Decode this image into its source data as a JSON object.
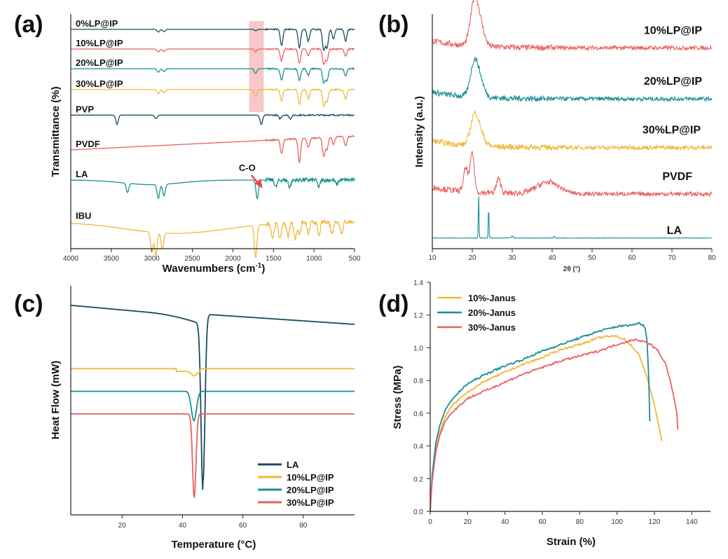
{
  "colors": {
    "navy": "#1b4b5c",
    "red": "#e86262",
    "teal": "#1a8f94",
    "yellow": "#f2b73c",
    "highlight": "#f6b9b9"
  },
  "chart_data": [
    {
      "panel_label": "(a)",
      "type": "line",
      "xlabel": "Wavenumbers (cm",
      "xlabel_sup": "-1",
      "xlabel_close": ")",
      "ylabel": "Transmittance (%)",
      "xlim": [
        4000,
        500
      ],
      "x_ticks": [
        "4000",
        "3500",
        "3000",
        "2500",
        "2000",
        "1500",
        "1000",
        "500"
      ],
      "highlight_band": [
        1800,
        1620
      ],
      "annotation": {
        "text": "C-O",
        "x": 1720
      },
      "series": [
        {
          "name": "0%LP@IP",
          "color": "navy",
          "offset": 0.94,
          "peaks": [
            [
              2920,
              0.012
            ],
            [
              2850,
              0.01
            ],
            [
              1720,
              0.006
            ],
            [
              1400,
              0.07
            ],
            [
              1180,
              0.08
            ],
            [
              1070,
              0.05
            ],
            [
              880,
              0.09
            ],
            [
              840,
              0.08
            ],
            [
              760,
              0.04
            ],
            [
              610,
              0.05
            ]
          ]
        },
        {
          "name": "10%LP@IP",
          "color": "red",
          "offset": 0.855,
          "peaks": [
            [
              2920,
              0.012
            ],
            [
              2850,
              0.01
            ],
            [
              1720,
              0.012
            ],
            [
              1400,
              0.05
            ],
            [
              1180,
              0.06
            ],
            [
              1070,
              0.03
            ],
            [
              880,
              0.065
            ],
            [
              840,
              0.05
            ],
            [
              610,
              0.03
            ]
          ]
        },
        {
          "name": "20%LP@IP",
          "color": "teal",
          "offset": 0.77,
          "peaks": [
            [
              2920,
              0.015
            ],
            [
              2850,
              0.012
            ],
            [
              1720,
              0.02
            ],
            [
              1400,
              0.05
            ],
            [
              1180,
              0.05
            ],
            [
              1070,
              0.03
            ],
            [
              880,
              0.06
            ],
            [
              840,
              0.05
            ],
            [
              610,
              0.03
            ]
          ]
        },
        {
          "name": "30%LP@IP",
          "color": "yellow",
          "offset": 0.68,
          "peaks": [
            [
              2920,
              0.018
            ],
            [
              2850,
              0.014
            ],
            [
              1720,
              0.03
            ],
            [
              1400,
              0.05
            ],
            [
              1180,
              0.06
            ],
            [
              1070,
              0.04
            ],
            [
              880,
              0.07
            ],
            [
              840,
              0.05
            ],
            [
              610,
              0.04
            ]
          ]
        },
        {
          "name": "PVP",
          "color": "navy",
          "offset": 0.57,
          "peaks": [
            [
              3430,
              0.04
            ],
            [
              2950,
              0.015
            ],
            [
              1650,
              0.04
            ],
            [
              1420,
              0.015
            ],
            [
              1290,
              0.015
            ]
          ]
        },
        {
          "name": "PVDF",
          "color": "red",
          "offset": 0.42,
          "peaks": [
            [
              1400,
              0.06
            ],
            [
              1180,
              0.1
            ],
            [
              1070,
              0.04
            ],
            [
              880,
              0.08
            ],
            [
              840,
              0.05
            ],
            [
              760,
              0.03
            ],
            [
              610,
              0.04
            ]
          ]
        },
        {
          "name": "LA",
          "color": "teal",
          "offset": 0.29,
          "peaks": [
            [
              3300,
              0.04
            ],
            [
              2920,
              0.06
            ],
            [
              2850,
              0.05
            ],
            [
              1700,
              0.08
            ],
            [
              1470,
              0.03
            ],
            [
              1300,
              0.03
            ],
            [
              940,
              0.03
            ],
            [
              720,
              0.02
            ]
          ]
        },
        {
          "name": "IBU",
          "color": "yellow",
          "offset": 0.11,
          "peaks": [
            [
              3000,
              0.08
            ],
            [
              2950,
              0.1
            ],
            [
              2870,
              0.07
            ],
            [
              1720,
              0.14
            ],
            [
              1510,
              0.06
            ],
            [
              1420,
              0.07
            ],
            [
              1320,
              0.06
            ],
            [
              1230,
              0.07
            ],
            [
              1180,
              0.05
            ],
            [
              1070,
              0.05
            ],
            [
              940,
              0.06
            ],
            [
              780,
              0.05
            ],
            [
              660,
              0.05
            ]
          ]
        }
      ]
    },
    {
      "panel_label": "(b)",
      "type": "line",
      "xlabel": "2θ (°)",
      "ylabel": "Intensity (a.u.)",
      "xlim": [
        10,
        80
      ],
      "x_ticks": [
        "10",
        "20",
        "30",
        "40",
        "50",
        "60",
        "70",
        "80"
      ],
      "series": [
        {
          "name": "10%LP@IP",
          "color": "red",
          "offset": 0.86,
          "peaks": [
            [
              20.5,
              0.18,
              1.4
            ],
            [
              22,
              0.08,
              1.5
            ]
          ]
        },
        {
          "name": "20%LP@IP",
          "color": "teal",
          "offset": 0.64,
          "peaks": [
            [
              20.5,
              0.14,
              1.4
            ],
            [
              22,
              0.06,
              1.5
            ]
          ]
        },
        {
          "name": "30%LP@IP",
          "color": "yellow",
          "offset": 0.43,
          "peaks": [
            [
              20.5,
              0.12,
              1.4
            ],
            [
              22,
              0.05,
              1.5
            ]
          ]
        },
        {
          "name": "PVDF",
          "color": "red",
          "offset": 0.23,
          "peaks": [
            [
              18.4,
              0.1,
              0.8
            ],
            [
              20,
              0.17,
              0.7
            ],
            [
              26.6,
              0.06,
              0.8
            ],
            [
              39,
              0.05,
              4
            ]
          ]
        },
        {
          "name": "LA",
          "color": "teal",
          "offset": 0.04,
          "peaks": [
            [
              21.6,
              0.2,
              0.12
            ],
            [
              24.1,
              0.14,
              0.12
            ],
            [
              30,
              0.01,
              0.2
            ],
            [
              40.5,
              0.008,
              0.2
            ]
          ]
        }
      ]
    },
    {
      "panel_label": "(c)",
      "type": "line",
      "xlabel": "Temperature (°C)",
      "ylabel": "Heat Flow (mW)",
      "xlim": [
        3,
        97
      ],
      "x_ticks": [
        20,
        40,
        60,
        80
      ],
      "series": [
        {
          "name": "LA",
          "color": "navy",
          "base": 0.92,
          "slope": -0.0012,
          "peak_x": 46.8,
          "depth": 0.74,
          "width": 0.9
        },
        {
          "name": "10%LP@IP",
          "color": "yellow",
          "base": 0.64,
          "slope": 0,
          "peak_x": 43.8,
          "depth": 0.02,
          "width": 1.2
        },
        {
          "name": "20%LP@IP",
          "color": "teal",
          "base": 0.54,
          "slope": 0,
          "peak_x": 43.8,
          "depth": 0.13,
          "width": 1.2
        },
        {
          "name": "30%LP@IP",
          "color": "red",
          "base": 0.44,
          "slope": 0,
          "peak_x": 43.9,
          "depth": 0.37,
          "width": 0.8
        }
      ],
      "legend": [
        "LA",
        "10%LP@IP",
        "20%LP@IP",
        "30%LP@IP"
      ]
    },
    {
      "panel_label": "(d)",
      "type": "line",
      "xlabel": "Strain (%)",
      "ylabel": "Stress (MPa)",
      "xlim": [
        0,
        150
      ],
      "ylim": [
        0,
        1.4
      ],
      "x_ticks": [
        0,
        20,
        40,
        60,
        80,
        100,
        120,
        140
      ],
      "y_ticks": [
        "0.0",
        "0.2",
        "0.4",
        "0.6",
        "0.8",
        "1.0",
        "1.2",
        "1.4"
      ],
      "series": [
        {
          "name": "10%-Janus",
          "color": "yellow",
          "x": [
            0,
            1,
            3,
            5,
            8,
            12,
            20,
            30,
            40,
            50,
            60,
            70,
            80,
            90,
            96,
            100,
            104,
            108,
            112,
            116,
            120,
            124
          ],
          "y": [
            0,
            0.2,
            0.38,
            0.48,
            0.58,
            0.65,
            0.73,
            0.8,
            0.85,
            0.9,
            0.94,
            0.99,
            1.02,
            1.06,
            1.07,
            1.07,
            1.05,
            1.01,
            0.95,
            0.82,
            0.65,
            0.43
          ]
        },
        {
          "name": "20%-Janus",
          "color": "teal",
          "x": [
            0,
            1,
            3,
            5,
            8,
            12,
            20,
            30,
            40,
            50,
            60,
            70,
            80,
            90,
            100,
            108,
            112,
            114,
            115,
            116,
            117,
            117.5
          ],
          "y": [
            0,
            0.22,
            0.42,
            0.52,
            0.62,
            0.69,
            0.78,
            0.84,
            0.89,
            0.93,
            0.98,
            1.02,
            1.06,
            1.1,
            1.13,
            1.14,
            1.15,
            1.14,
            1.12,
            1.05,
            0.8,
            0.55
          ]
        },
        {
          "name": "30%-Janus",
          "color": "red",
          "x": [
            0,
            1,
            3,
            5,
            8,
            12,
            20,
            30,
            40,
            50,
            60,
            70,
            80,
            90,
            100,
            106,
            110,
            114,
            118,
            122,
            126,
            128,
            130,
            132,
            132.5
          ],
          "y": [
            0,
            0.18,
            0.36,
            0.46,
            0.55,
            0.61,
            0.69,
            0.74,
            0.79,
            0.84,
            0.88,
            0.92,
            0.95,
            0.98,
            1.02,
            1.04,
            1.05,
            1.04,
            1.02,
            0.98,
            0.9,
            0.82,
            0.72,
            0.6,
            0.5
          ]
        }
      ],
      "legend": [
        "10%-Janus",
        "20%-Janus",
        "30%-Janus"
      ]
    }
  ]
}
